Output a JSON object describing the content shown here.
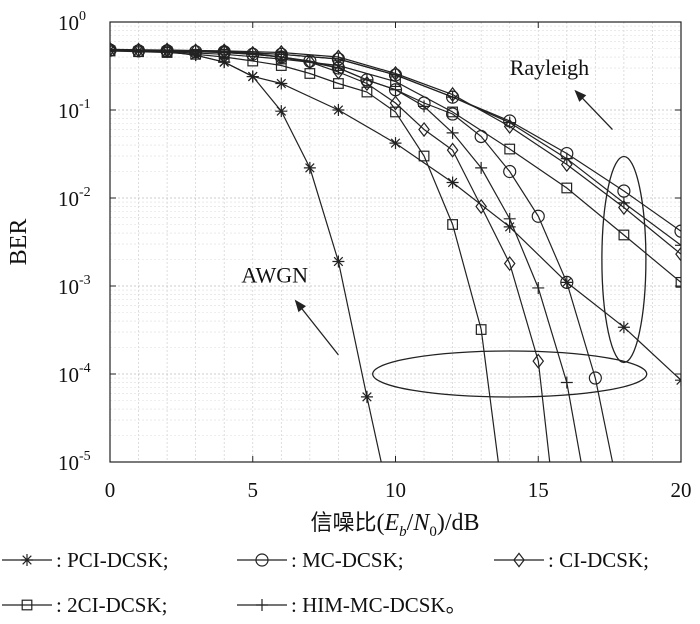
{
  "chart_data": {
    "type": "line",
    "xlabel_prefix": "信噪比",
    "xlabel_math": "(E_b/N_0)",
    "xlabel_unit": "/dB",
    "ylabel": "BER",
    "xlim": [
      0,
      20
    ],
    "ylim": [
      1e-05,
      1
    ],
    "yscale": "log",
    "grid": true,
    "xticks": [
      "0",
      "5",
      "10",
      "15",
      "20"
    ],
    "yticks": [
      {
        "base": "10",
        "exp": "0"
      },
      {
        "base": "10",
        "exp": "-1"
      },
      {
        "base": "10",
        "exp": "-2"
      },
      {
        "base": "10",
        "exp": "-3"
      },
      {
        "base": "10",
        "exp": "-4"
      },
      {
        "base": "10",
        "exp": "-5"
      }
    ],
    "annotations": {
      "rayleigh": "Rayleigh",
      "awgn": "AWGN"
    },
    "series": [
      {
        "name": "PCI-DCSK",
        "marker": "star",
        "channel": "AWGN",
        "x": [
          0,
          1,
          2,
          3,
          4,
          5,
          6,
          7,
          8,
          9,
          9.5
        ],
        "y": [
          0.48,
          0.47,
          0.46,
          0.42,
          0.35,
          0.24,
          0.097,
          0.022,
          0.0019,
          5.5e-05,
          1e-05
        ]
      },
      {
        "name": "PCI-DCSK",
        "marker": "star",
        "channel": "Rayleigh",
        "x": [
          0,
          1,
          2,
          3,
          4,
          5,
          6,
          8,
          10,
          12,
          14,
          16,
          18,
          20
        ],
        "y": [
          0.48,
          0.47,
          0.46,
          0.42,
          0.35,
          0.24,
          0.2,
          0.1,
          0.042,
          0.015,
          0.0047,
          0.0011,
          0.00034,
          8.5e-05
        ]
      },
      {
        "name": "MC-DCSK",
        "marker": "circle",
        "channel": "AWGN",
        "x": [
          0,
          1,
          2,
          3,
          4,
          5,
          6,
          7,
          8,
          9,
          10,
          11,
          12,
          13,
          14,
          15,
          16,
          17,
          17.6
        ],
        "y": [
          0.48,
          0.47,
          0.47,
          0.46,
          0.45,
          0.43,
          0.4,
          0.36,
          0.3,
          0.22,
          0.17,
          0.12,
          0.09,
          0.05,
          0.02,
          0.0062,
          0.0011,
          9e-05,
          1e-05
        ]
      },
      {
        "name": "MC-DCSK",
        "marker": "circle",
        "channel": "Rayleigh",
        "x": [
          0,
          2,
          4,
          6,
          8,
          10,
          12,
          14,
          16,
          18,
          20
        ],
        "y": [
          0.48,
          0.47,
          0.46,
          0.43,
          0.38,
          0.25,
          0.14,
          0.075,
          0.032,
          0.012,
          0.0042
        ]
      },
      {
        "name": "CI-DCSK",
        "marker": "diamond",
        "channel": "AWGN",
        "x": [
          0,
          1,
          2,
          3,
          4,
          5,
          6,
          7,
          8,
          9,
          10,
          11,
          12,
          13,
          14,
          15,
          15.4
        ],
        "y": [
          0.49,
          0.48,
          0.48,
          0.47,
          0.46,
          0.44,
          0.4,
          0.35,
          0.27,
          0.2,
          0.12,
          0.06,
          0.035,
          0.008,
          0.0018,
          0.00014,
          1e-05
        ]
      },
      {
        "name": "CI-DCSK",
        "marker": "diamond",
        "channel": "Rayleigh",
        "x": [
          0,
          2,
          4,
          6,
          8,
          10,
          12,
          14,
          16,
          18,
          20
        ],
        "y": [
          0.49,
          0.48,
          0.47,
          0.45,
          0.4,
          0.26,
          0.15,
          0.065,
          0.024,
          0.0078,
          0.0023
        ]
      },
      {
        "name": "2CI-DCSK",
        "marker": "square",
        "channel": "AWGN",
        "x": [
          0,
          1,
          2,
          3,
          4,
          5,
          6,
          7,
          8,
          9,
          10,
          11,
          12,
          13,
          13.6
        ],
        "y": [
          0.47,
          0.46,
          0.45,
          0.43,
          0.4,
          0.36,
          0.32,
          0.26,
          0.2,
          0.16,
          0.095,
          0.03,
          0.005,
          0.00032,
          1e-05
        ]
      },
      {
        "name": "2CI-DCSK",
        "marker": "square",
        "channel": "Rayleigh",
        "x": [
          0,
          2,
          4,
          6,
          8,
          10,
          12,
          14,
          16,
          18,
          20
        ],
        "y": [
          0.47,
          0.46,
          0.43,
          0.38,
          0.32,
          0.21,
          0.095,
          0.036,
          0.013,
          0.0038,
          0.0011
        ]
      },
      {
        "name": "HIM-MC-DCSK",
        "marker": "plus",
        "channel": "AWGN",
        "x": [
          0,
          1,
          2,
          3,
          4,
          5,
          6,
          7,
          8,
          9,
          10,
          11,
          12,
          13,
          14,
          15,
          16,
          16.5
        ],
        "y": [
          0.48,
          0.48,
          0.47,
          0.46,
          0.45,
          0.43,
          0.4,
          0.35,
          0.3,
          0.22,
          0.17,
          0.11,
          0.055,
          0.022,
          0.0058,
          0.00095,
          8e-05,
          1e-05
        ]
      },
      {
        "name": "HIM-MC-DCSK",
        "marker": "plus",
        "channel": "Rayleigh",
        "x": [
          0,
          2,
          4,
          6,
          8,
          10,
          12,
          14,
          16,
          18,
          20
        ],
        "y": [
          0.48,
          0.47,
          0.46,
          0.43,
          0.38,
          0.25,
          0.14,
          0.072,
          0.028,
          0.0088,
          0.0029
        ]
      }
    ],
    "legend": [
      {
        "marker": "star",
        "label": ": PCI-DCSK;"
      },
      {
        "marker": "circle",
        "label": ": MC-DCSK;"
      },
      {
        "marker": "diamond",
        "label": ": CI-DCSK;"
      },
      {
        "marker": "square",
        "label": ": 2CI-DCSK;"
      },
      {
        "marker": "plus",
        "label": ": HIM-MC-DCSK。"
      }
    ]
  }
}
